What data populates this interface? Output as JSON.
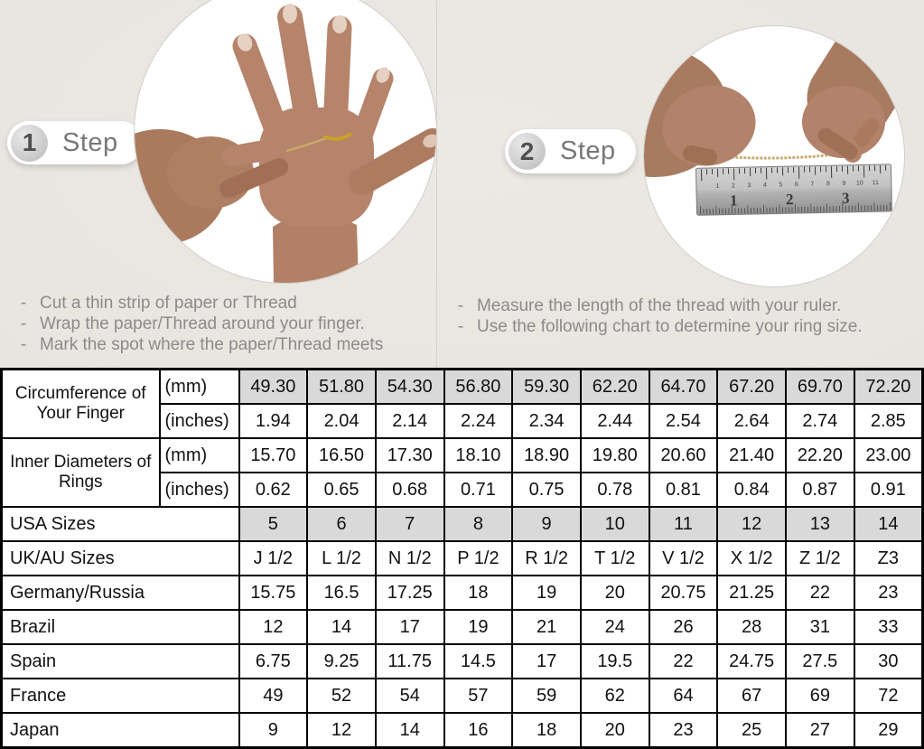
{
  "bullet": "-",
  "colors": {
    "background": "#eae7e2",
    "table_highlight": "#d9d9d9",
    "table_border": "#000000",
    "instruction_text": "#8b8b8b"
  },
  "steps": [
    {
      "number": "1",
      "label": "Step",
      "image": "hand-with-thread-wrapped-around-ring-finger",
      "instructions": [
        "Cut a thin strip of paper or Thread",
        "Wrap the paper/Thread around your finger.",
        "Mark the spot where the paper/Thread meets"
      ]
    },
    {
      "number": "2",
      "label": "Step",
      "image": "hands-measuring-thread-length-with-ruler",
      "instructions": [
        "Measure the length of the thread with your ruler.",
        "Use the following chart to determine your ring size."
      ]
    }
  ],
  "ruler": {
    "numbers": [
      "1",
      "2",
      "3"
    ],
    "minor_numbers": [
      "1",
      "2",
      "3",
      "4",
      "5",
      "6",
      "7",
      "8",
      "9",
      "10",
      "11"
    ]
  },
  "table": {
    "groups": [
      {
        "label": "Circumference of Your Finger",
        "rows": [
          {
            "unit": "(mm)",
            "highlight": true,
            "values": [
              "49.30",
              "51.80",
              "54.30",
              "56.80",
              "59.30",
              "62.20",
              "64.70",
              "67.20",
              "69.70",
              "72.20"
            ]
          },
          {
            "unit": "(inches)",
            "highlight": false,
            "values": [
              "1.94",
              "2.04",
              "2.14",
              "2.24",
              "2.34",
              "2.44",
              "2.54",
              "2.64",
              "2.74",
              "2.85"
            ]
          }
        ]
      },
      {
        "label": "Inner Diameters of Rings",
        "rows": [
          {
            "unit": "(mm)",
            "highlight": false,
            "values": [
              "15.70",
              "16.50",
              "17.30",
              "18.10",
              "18.90",
              "19.80",
              "20.60",
              "21.40",
              "22.20",
              "23.00"
            ]
          },
          {
            "unit": "(inches)",
            "highlight": false,
            "values": [
              "0.62",
              "0.65",
              "0.68",
              "0.71",
              "0.75",
              "0.78",
              "0.81",
              "0.84",
              "0.87",
              "0.91"
            ]
          }
        ]
      }
    ],
    "rows": [
      {
        "label": "USA Sizes",
        "highlight": true,
        "values": [
          "5",
          "6",
          "7",
          "8",
          "9",
          "10",
          "11",
          "12",
          "13",
          "14"
        ]
      },
      {
        "label": "UK/AU Sizes",
        "highlight": false,
        "values": [
          "J 1/2",
          "L 1/2",
          "N 1/2",
          "P 1/2",
          "R 1/2",
          "T 1/2",
          "V 1/2",
          "X 1/2",
          "Z 1/2",
          "Z3"
        ]
      },
      {
        "label": "Germany/Russia",
        "highlight": false,
        "values": [
          "15.75",
          "16.5",
          "17.25",
          "18",
          "19",
          "20",
          "20.75",
          "21.25",
          "22",
          "23"
        ]
      },
      {
        "label": "Brazil",
        "highlight": false,
        "values": [
          "12",
          "14",
          "17",
          "19",
          "21",
          "24",
          "26",
          "28",
          "31",
          "33"
        ]
      },
      {
        "label": "Spain",
        "highlight": false,
        "values": [
          "6.75",
          "9.25",
          "11.75",
          "14.5",
          "17",
          "19.5",
          "22",
          "24.75",
          "27.5",
          "30"
        ]
      },
      {
        "label": "France",
        "highlight": false,
        "values": [
          "49",
          "52",
          "54",
          "57",
          "59",
          "62",
          "64",
          "67",
          "69",
          "72"
        ]
      },
      {
        "label": "Japan",
        "highlight": false,
        "values": [
          "9",
          "12",
          "14",
          "16",
          "18",
          "20",
          "23",
          "25",
          "27",
          "29"
        ]
      }
    ]
  }
}
